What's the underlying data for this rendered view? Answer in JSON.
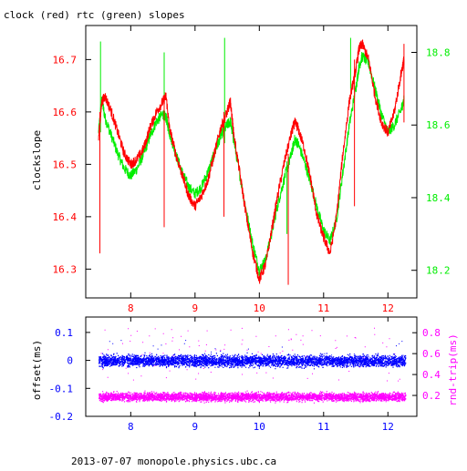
{
  "page_title": "clock (red) rtc (green) slopes",
  "footer": "2013-07-07 monopole.physics.ubc.ca",
  "colors": {
    "clock": "#ff0000",
    "rtc": "#00ee00",
    "offset": "#0000ff",
    "rndtrip": "#ff00ff",
    "axis": "#000000"
  },
  "chart_data": [
    {
      "type": "line",
      "title": "clock (red) rtc (green) slopes",
      "xlabel": "",
      "ylabel": "clockslope",
      "y2label": "",
      "xlim": [
        7.3,
        12.45
      ],
      "ylim": [
        16.245,
        16.765
      ],
      "y2lim": [
        18.124,
        18.874
      ],
      "x_ticks": [
        8,
        9,
        10,
        11,
        12
      ],
      "y_ticks": [
        16.3,
        16.4,
        16.5,
        16.6,
        16.7
      ],
      "y2_ticks": [
        18.2,
        18.4,
        18.6,
        18.8
      ],
      "series": [
        {
          "name": "clock",
          "axis": "left",
          "x": [
            7.5,
            7.55,
            7.6,
            7.7,
            7.8,
            7.9,
            8.0,
            8.1,
            8.2,
            8.3,
            8.4,
            8.5,
            8.55,
            8.6,
            8.7,
            8.8,
            8.9,
            9.0,
            9.1,
            9.2,
            9.3,
            9.4,
            9.5,
            9.55,
            9.6,
            9.7,
            9.8,
            9.9,
            10.0,
            10.1,
            10.2,
            10.3,
            10.4,
            10.5,
            10.55,
            10.6,
            10.7,
            10.8,
            10.9,
            11.0,
            11.1,
            11.2,
            11.3,
            11.4,
            11.5,
            11.55,
            11.6,
            11.7,
            11.8,
            11.9,
            12.0,
            12.1,
            12.2,
            12.25
          ],
          "y": [
            16.55,
            16.62,
            16.63,
            16.6,
            16.56,
            16.52,
            16.5,
            16.51,
            16.53,
            16.57,
            16.6,
            16.62,
            16.63,
            16.57,
            16.52,
            16.48,
            16.44,
            16.42,
            16.44,
            16.47,
            16.52,
            16.57,
            16.6,
            16.62,
            16.56,
            16.48,
            16.4,
            16.33,
            16.28,
            16.31,
            16.38,
            16.45,
            16.51,
            16.56,
            16.58,
            16.57,
            16.53,
            16.47,
            16.4,
            16.36,
            16.33,
            16.4,
            16.52,
            16.62,
            16.68,
            16.72,
            16.73,
            16.7,
            16.63,
            16.58,
            16.56,
            16.6,
            16.67,
            16.7
          ]
        },
        {
          "name": "rtc",
          "axis": "right",
          "x": [
            7.5,
            7.55,
            7.6,
            7.7,
            7.8,
            7.9,
            8.0,
            8.1,
            8.2,
            8.3,
            8.4,
            8.5,
            8.55,
            8.6,
            8.7,
            8.8,
            8.9,
            9.0,
            9.1,
            9.2,
            9.3,
            9.4,
            9.5,
            9.55,
            9.6,
            9.7,
            9.8,
            9.9,
            10.0,
            10.1,
            10.2,
            10.3,
            10.4,
            10.5,
            10.55,
            10.6,
            10.7,
            10.8,
            10.9,
            11.0,
            11.1,
            11.2,
            11.3,
            11.4,
            11.5,
            11.55,
            11.6,
            11.7,
            11.8,
            11.9,
            12.0,
            12.1,
            12.2,
            12.25
          ],
          "y": [
            18.58,
            18.67,
            18.62,
            18.57,
            18.52,
            18.48,
            18.46,
            18.48,
            18.52,
            18.57,
            18.61,
            18.63,
            18.62,
            18.58,
            18.52,
            18.47,
            18.43,
            18.41,
            18.43,
            18.47,
            18.52,
            18.57,
            18.6,
            18.61,
            18.56,
            18.46,
            18.36,
            18.27,
            18.2,
            18.23,
            18.31,
            18.39,
            18.46,
            18.52,
            18.56,
            18.55,
            18.5,
            18.44,
            18.37,
            18.31,
            18.28,
            18.34,
            18.47,
            18.6,
            18.7,
            18.76,
            18.79,
            18.77,
            18.7,
            18.63,
            18.58,
            18.6,
            18.64,
            18.67
          ]
        }
      ]
    },
    {
      "type": "scatter",
      "xlabel": "",
      "ylabel": "offset(ms)",
      "y2label": "rnd-trip(ms)",
      "xlim": [
        7.3,
        12.45
      ],
      "ylim": [
        -0.2,
        0.155
      ],
      "y2lim": [
        0.0,
        0.95
      ],
      "x_ticks": [
        8,
        9,
        10,
        11,
        12
      ],
      "y_ticks": [
        -0.2,
        -0.1,
        0,
        0.1
      ],
      "y_tick_labels": [
        "-0.2",
        "-0.1",
        "0",
        "0.1"
      ],
      "y2_ticks": [
        0.2,
        0.4,
        0.6,
        0.8
      ],
      "series": [
        {
          "name": "offset",
          "axis": "left",
          "x_range": [
            7.5,
            12.27
          ],
          "center": 0.0,
          "spread": 0.02
        },
        {
          "name": "rnd-trip",
          "axis": "right",
          "x_range": [
            7.5,
            12.27
          ],
          "center": 0.19,
          "spread": 0.04
        }
      ]
    }
  ]
}
